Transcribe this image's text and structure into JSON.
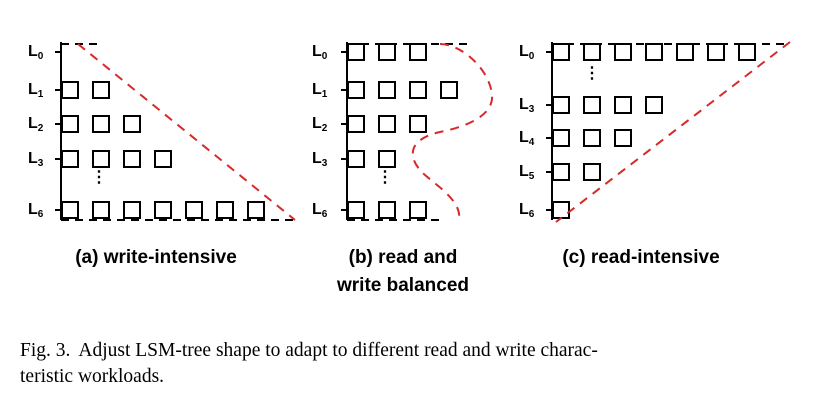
{
  "figure": {
    "panels": [
      {
        "id": "a",
        "label_lines": [
          "(a) write-intensive"
        ],
        "levels": [
          {
            "base": "L",
            "sub": "0",
            "boxes": 0
          },
          {
            "base": "L",
            "sub": "1",
            "boxes": 2
          },
          {
            "base": "L",
            "sub": "2",
            "boxes": 3
          },
          {
            "base": "L",
            "sub": "3",
            "boxes": 4
          },
          {
            "base": "L",
            "sub": "6",
            "boxes": 7
          }
        ],
        "ellipsis": "⋮"
      },
      {
        "id": "b",
        "label_lines": [
          "(b) read and",
          "write balanced"
        ],
        "levels": [
          {
            "base": "L",
            "sub": "0",
            "boxes": 3
          },
          {
            "base": "L",
            "sub": "1",
            "boxes": 4
          },
          {
            "base": "L",
            "sub": "2",
            "boxes": 3
          },
          {
            "base": "L",
            "sub": "3",
            "boxes": 2
          },
          {
            "base": "L",
            "sub": "6",
            "boxes": 3
          }
        ],
        "ellipsis": "⋮"
      },
      {
        "id": "c",
        "label_lines": [
          "(c) read-intensive"
        ],
        "levels": [
          {
            "base": "L",
            "sub": "0",
            "boxes": 7
          },
          {
            "base": "L",
            "sub": "3",
            "boxes": 4
          },
          {
            "base": "L",
            "sub": "4",
            "boxes": 3
          },
          {
            "base": "L",
            "sub": "5",
            "boxes": 2
          },
          {
            "base": "L",
            "sub": "6",
            "boxes": 1
          }
        ],
        "ellipsis": "⋮"
      }
    ],
    "colors": {
      "outline": "#000000",
      "shape_dash": "#d62a2a"
    }
  },
  "caption": {
    "prefix": "Fig. 3.",
    "line1": "Adjust LSM-tree shape to adapt to different read and write charac-",
    "line2": "teristic workloads."
  }
}
